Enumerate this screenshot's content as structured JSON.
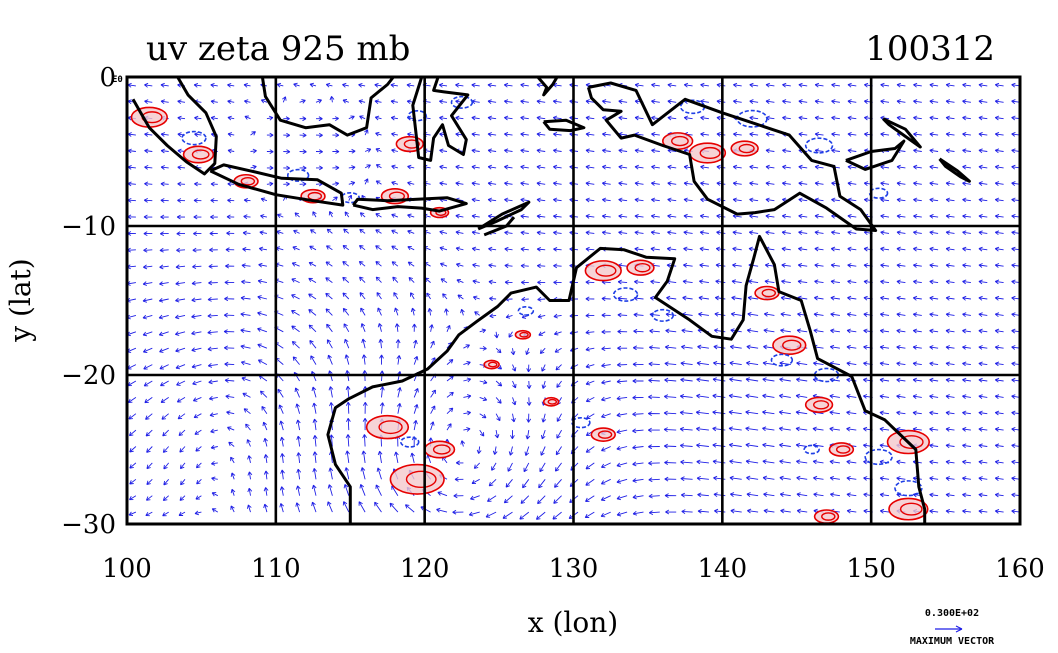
{
  "chart_data": {
    "type": "vector-contour-map",
    "title": "uv zeta 925 mb",
    "date_label": "100312",
    "xlabel": "x (lon)",
    "ylabel": "y (lat)",
    "xlim": [
      100,
      160
    ],
    "ylim": [
      -30,
      0
    ],
    "x_ticks": [
      "100",
      "110",
      "120",
      "130",
      "140",
      "150",
      "160"
    ],
    "y_ticks": [
      "0",
      "−10",
      "−20",
      "−30"
    ],
    "y_tick_suffix": "E0",
    "grid": true,
    "legend": {
      "value": "0.300E+02",
      "label": "MAXIMUM VECTOR",
      "placement": "bottom-right"
    },
    "colors": {
      "vectors": "#1f1fe6",
      "positive_contours": "#e60000",
      "negative_contours": "#1f3fe6",
      "positive_fill": "#f4c8cc",
      "coastline": "#000000",
      "grid": "#000000"
    },
    "coastlines": [
      {
        "name": "sumatra",
        "points": [
          [
            100.4,
            -1.5
          ],
          [
            101.5,
            -3.4
          ],
          [
            102.7,
            -4.6
          ],
          [
            104.0,
            -5.7
          ],
          [
            105.2,
            -6.5
          ],
          [
            105.9,
            -5.8
          ],
          [
            106.0,
            -4.0
          ],
          [
            105.3,
            -2.4
          ],
          [
            104.1,
            -1.2
          ],
          [
            103.4,
            0
          ]
        ]
      },
      {
        "name": "java",
        "points": [
          [
            105.6,
            -6.3
          ],
          [
            107.5,
            -7.2
          ],
          [
            110.0,
            -7.9
          ],
          [
            112.5,
            -8.3
          ],
          [
            114.5,
            -8.6
          ],
          [
            114.4,
            -7.8
          ],
          [
            112.8,
            -6.9
          ],
          [
            110.4,
            -6.8
          ],
          [
            108.3,
            -6.3
          ],
          [
            106.5,
            -5.9
          ],
          [
            105.6,
            -6.3
          ]
        ]
      },
      {
        "name": "lesser-sunda",
        "points": [
          [
            115.2,
            -8.6
          ],
          [
            116.5,
            -8.9
          ],
          [
            118.2,
            -8.7
          ],
          [
            119.8,
            -8.8
          ],
          [
            121.0,
            -9.0
          ],
          [
            122.8,
            -8.5
          ],
          [
            121.5,
            -8.1
          ],
          [
            119.5,
            -8.2
          ],
          [
            117.5,
            -8.3
          ],
          [
            115.5,
            -8.2
          ],
          [
            115.2,
            -8.6
          ]
        ]
      },
      {
        "name": "timor",
        "points": [
          [
            123.6,
            -10.2
          ],
          [
            125.2,
            -9.2
          ],
          [
            127.0,
            -8.4
          ],
          [
            126.5,
            -8.9
          ],
          [
            124.8,
            -9.7
          ],
          [
            123.6,
            -10.2
          ]
        ]
      },
      {
        "name": "borneo",
        "points": [
          [
            109.1,
            0
          ],
          [
            109.3,
            -1.3
          ],
          [
            110.3,
            -2.9
          ],
          [
            112.0,
            -3.4
          ],
          [
            113.6,
            -3.2
          ],
          [
            114.8,
            -3.9
          ],
          [
            116.1,
            -3.4
          ],
          [
            116.4,
            -1.4
          ],
          [
            117.5,
            -0.5
          ],
          [
            117.9,
            0
          ]
        ]
      },
      {
        "name": "sulawesi",
        "points": [
          [
            119.8,
            0
          ],
          [
            119.2,
            -1.9
          ],
          [
            119.4,
            -3.6
          ],
          [
            119.6,
            -5.4
          ],
          [
            120.4,
            -5.6
          ],
          [
            120.6,
            -4.1
          ],
          [
            121.2,
            -3.2
          ],
          [
            121.6,
            -4.6
          ],
          [
            122.6,
            -5.2
          ],
          [
            122.8,
            -4.2
          ],
          [
            121.8,
            -2.6
          ],
          [
            122.9,
            -1.2
          ],
          [
            121.3,
            -1.0
          ],
          [
            120.6,
            -0.9
          ],
          [
            120.9,
            0
          ]
        ]
      },
      {
        "name": "halmahera",
        "points": [
          [
            127.6,
            0
          ],
          [
            128.2,
            -0.7
          ],
          [
            128.0,
            -1.2
          ],
          [
            128.6,
            -0.5
          ],
          [
            128.9,
            0
          ]
        ]
      },
      {
        "name": "seram",
        "points": [
          [
            128.0,
            -3.0
          ],
          [
            129.5,
            -2.9
          ],
          [
            130.7,
            -3.4
          ],
          [
            129.8,
            -3.6
          ],
          [
            128.4,
            -3.5
          ],
          [
            128.0,
            -3.0
          ]
        ]
      },
      {
        "name": "new-guinea",
        "points": [
          [
            131.0,
            -0.7
          ],
          [
            132.5,
            -0.4
          ],
          [
            134.2,
            -0.9
          ],
          [
            135.3,
            -3.2
          ],
          [
            137.5,
            -1.5
          ],
          [
            140.0,
            -2.4
          ],
          [
            141.8,
            -3.0
          ],
          [
            144.5,
            -3.9
          ],
          [
            146.0,
            -5.6
          ],
          [
            147.5,
            -6.0
          ],
          [
            147.9,
            -8.0
          ],
          [
            149.3,
            -8.9
          ],
          [
            150.3,
            -10.3
          ],
          [
            149.0,
            -10.2
          ],
          [
            147.0,
            -8.8
          ],
          [
            145.2,
            -7.8
          ],
          [
            143.5,
            -8.9
          ],
          [
            142.2,
            -9.1
          ],
          [
            141.0,
            -9.2
          ],
          [
            139.0,
            -8.2
          ],
          [
            138.1,
            -7.0
          ],
          [
            137.8,
            -5.2
          ],
          [
            136.0,
            -4.6
          ],
          [
            134.1,
            -3.9
          ],
          [
            133.2,
            -4.1
          ],
          [
            132.2,
            -2.9
          ],
          [
            133.2,
            -2.3
          ],
          [
            132.0,
            -2.2
          ],
          [
            131.2,
            -1.4
          ],
          [
            131.0,
            -0.7
          ]
        ]
      },
      {
        "name": "new-britain",
        "points": [
          [
            148.3,
            -5.6
          ],
          [
            150.0,
            -5.0
          ],
          [
            151.6,
            -4.8
          ],
          [
            152.2,
            -4.3
          ],
          [
            151.4,
            -5.6
          ],
          [
            149.6,
            -6.2
          ],
          [
            148.3,
            -5.6
          ]
        ]
      },
      {
        "name": "new-ireland",
        "points": [
          [
            150.8,
            -2.8
          ],
          [
            152.3,
            -3.5
          ],
          [
            153.3,
            -4.7
          ],
          [
            152.6,
            -4.2
          ],
          [
            151.2,
            -3.2
          ],
          [
            150.8,
            -2.8
          ]
        ]
      },
      {
        "name": "solomons",
        "points": [
          [
            154.6,
            -5.5
          ],
          [
            155.8,
            -6.3
          ],
          [
            156.6,
            -7.0
          ],
          [
            156.0,
            -6.7
          ],
          [
            155.0,
            -6.0
          ],
          [
            154.6,
            -5.5
          ]
        ]
      },
      {
        "name": "australia",
        "points": [
          [
            115.0,
            -30
          ],
          [
            115.0,
            -27.5
          ],
          [
            114.0,
            -26.0
          ],
          [
            113.5,
            -24.0
          ],
          [
            114.0,
            -22.2
          ],
          [
            114.9,
            -21.6
          ],
          [
            116.5,
            -20.8
          ],
          [
            118.5,
            -20.4
          ],
          [
            120.2,
            -19.6
          ],
          [
            121.5,
            -18.4
          ],
          [
            122.3,
            -17.3
          ],
          [
            123.5,
            -16.4
          ],
          [
            124.9,
            -15.4
          ],
          [
            125.8,
            -14.5
          ],
          [
            127.5,
            -14.1
          ],
          [
            128.4,
            -15.0
          ],
          [
            129.7,
            -15.0
          ],
          [
            130.2,
            -12.8
          ],
          [
            131.8,
            -11.5
          ],
          [
            133.4,
            -11.6
          ],
          [
            134.9,
            -12.1
          ],
          [
            136.8,
            -12.2
          ],
          [
            136.3,
            -13.7
          ],
          [
            135.5,
            -14.8
          ],
          [
            137.8,
            -16.3
          ],
          [
            139.3,
            -17.4
          ],
          [
            140.6,
            -17.6
          ],
          [
            141.4,
            -16.3
          ],
          [
            141.6,
            -14.0
          ],
          [
            142.1,
            -12.2
          ],
          [
            142.5,
            -10.7
          ],
          [
            143.5,
            -12.6
          ],
          [
            143.8,
            -14.4
          ],
          [
            145.3,
            -15.0
          ],
          [
            145.9,
            -17.0
          ],
          [
            146.4,
            -18.9
          ],
          [
            148.7,
            -20.1
          ],
          [
            149.6,
            -22.4
          ],
          [
            150.9,
            -23.0
          ],
          [
            153.0,
            -25.0
          ],
          [
            153.2,
            -27.5
          ],
          [
            153.6,
            -29.0
          ],
          [
            153.6,
            -30
          ]
        ]
      },
      {
        "name": "east-timor-south",
        "points": [
          [
            124.0,
            -10.6
          ],
          [
            125.5,
            -10.0
          ],
          [
            126.0,
            -9.4
          ]
        ]
      }
    ],
    "positive_vorticity_regions": [
      {
        "center": [
          101.5,
          -2.7
        ],
        "radius_deg": 1.2
      },
      {
        "center": [
          104.8,
          -5.2
        ],
        "radius_deg": 1.0
      },
      {
        "center": [
          108.0,
          -7.0
        ],
        "radius_deg": 0.8
      },
      {
        "center": [
          112.5,
          -8.0
        ],
        "radius_deg": 0.8
      },
      {
        "center": [
          118.0,
          -8.0
        ],
        "radius_deg": 0.9
      },
      {
        "center": [
          121.0,
          -9.1
        ],
        "radius_deg": 0.6
      },
      {
        "center": [
          119.0,
          -4.5
        ],
        "radius_deg": 0.9
      },
      {
        "center": [
          132.0,
          -13.0
        ],
        "radius_deg": 1.2
      },
      {
        "center": [
          134.5,
          -12.8
        ],
        "radius_deg": 0.9
      },
      {
        "center": [
          137.0,
          -4.3
        ],
        "radius_deg": 1.0
      },
      {
        "center": [
          139.0,
          -5.1
        ],
        "radius_deg": 1.2
      },
      {
        "center": [
          141.5,
          -4.8
        ],
        "radius_deg": 0.9
      },
      {
        "center": [
          143.0,
          -14.5
        ],
        "radius_deg": 0.8
      },
      {
        "center": [
          144.5,
          -18.0
        ],
        "radius_deg": 1.1
      },
      {
        "center": [
          146.5,
          -22.0
        ],
        "radius_deg": 0.9
      },
      {
        "center": [
          152.5,
          -24.5
        ],
        "radius_deg": 1.4
      },
      {
        "center": [
          148.0,
          -25.0
        ],
        "radius_deg": 0.8
      },
      {
        "center": [
          117.5,
          -23.5
        ],
        "radius_deg": 1.4
      },
      {
        "center": [
          119.5,
          -27.0
        ],
        "radius_deg": 1.8
      },
      {
        "center": [
          121.0,
          -25.0
        ],
        "radius_deg": 1.0
      },
      {
        "center": [
          124.5,
          -19.3
        ],
        "radius_deg": 0.5
      },
      {
        "center": [
          132.0,
          -24.0
        ],
        "radius_deg": 0.8
      },
      {
        "center": [
          128.5,
          -21.8
        ],
        "radius_deg": 0.5
      },
      {
        "center": [
          152.5,
          -29.0
        ],
        "radius_deg": 1.3
      },
      {
        "center": [
          147.0,
          -29.5
        ],
        "radius_deg": 0.8
      },
      {
        "center": [
          126.6,
          -17.3
        ],
        "radius_deg": 0.5
      }
    ],
    "negative_vorticity_regions": [
      {
        "center": [
          104.5,
          -4.1
        ],
        "radius_deg": 0.8
      },
      {
        "center": [
          111.5,
          -6.6
        ],
        "radius_deg": 0.7
      },
      {
        "center": [
          115.0,
          -8.1
        ],
        "radius_deg": 0.6
      },
      {
        "center": [
          119.5,
          -2.6
        ],
        "radius_deg": 0.6
      },
      {
        "center": [
          122.5,
          -1.7
        ],
        "radius_deg": 0.7
      },
      {
        "center": [
          138.0,
          -2.0
        ],
        "radius_deg": 0.8
      },
      {
        "center": [
          142.0,
          -2.8
        ],
        "radius_deg": 1.0
      },
      {
        "center": [
          146.5,
          -4.6
        ],
        "radius_deg": 0.9
      },
      {
        "center": [
          150.5,
          -7.8
        ],
        "radius_deg": 0.6
      },
      {
        "center": [
          133.5,
          -14.6
        ],
        "radius_deg": 0.8
      },
      {
        "center": [
          136.0,
          -16.0
        ],
        "radius_deg": 0.7
      },
      {
        "center": [
          144.0,
          -19.0
        ],
        "radius_deg": 0.7
      },
      {
        "center": [
          147.0,
          -20.0
        ],
        "radius_deg": 0.8
      },
      {
        "center": [
          150.5,
          -25.5
        ],
        "radius_deg": 0.9
      },
      {
        "center": [
          152.5,
          -27.6
        ],
        "radius_deg": 0.9
      },
      {
        "center": [
          130.5,
          -23.2
        ],
        "radius_deg": 0.6
      },
      {
        "center": [
          126.8,
          -15.7
        ],
        "radius_deg": 0.5
      },
      {
        "center": [
          146.0,
          -25.0
        ],
        "radius_deg": 0.5
      },
      {
        "center": [
          119.0,
          -24.5
        ],
        "radius_deg": 0.6
      }
    ],
    "wind_features": [
      {
        "type": "anticyclone",
        "center": [
          108.0,
          -22.0
        ],
        "strength": 1.0
      },
      {
        "type": "cyclone",
        "center": [
          122.0,
          -27.0
        ],
        "strength": 1.4
      },
      {
        "type": "easterly",
        "center": [
          140.0,
          -23.0
        ],
        "strength": 0.7
      },
      {
        "type": "monsoon-westerly",
        "center": [
          112.0,
          -6.0
        ],
        "strength": 0.6
      }
    ]
  }
}
